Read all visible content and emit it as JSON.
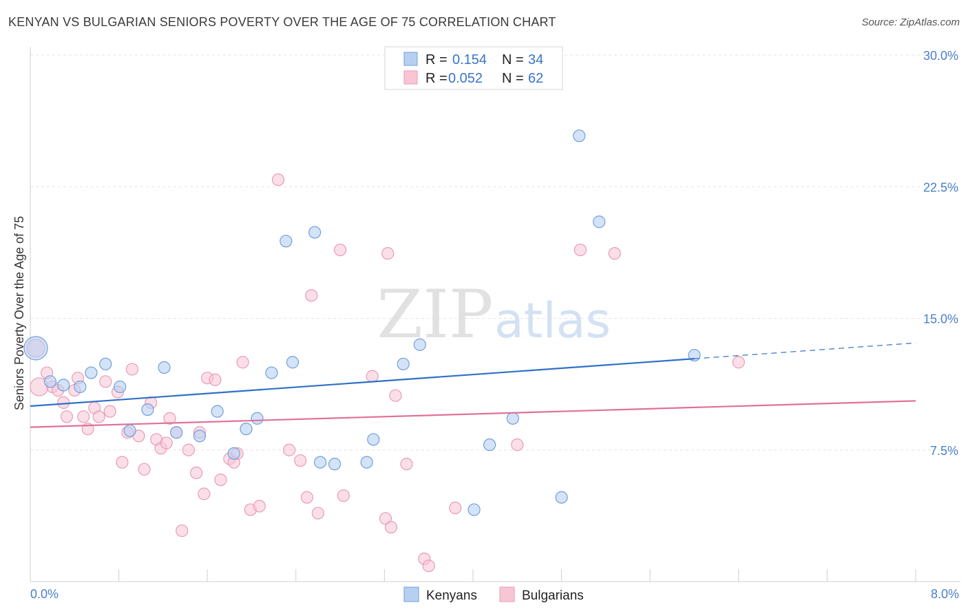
{
  "header": {
    "title": "KENYAN VS BULGARIAN SENIORS POVERTY OVER THE AGE OF 75 CORRELATION CHART",
    "source": "Source: ZipAtlas.com"
  },
  "watermark": {
    "zip": "ZIP",
    "atlas": "atlas"
  },
  "colors": {
    "kenyans_fill": "#b7d0f2",
    "kenyans_stroke": "#6f9fdc",
    "kenyans_line": "#2f6fc8",
    "bulgarians_fill": "#f8c5d5",
    "bulgarians_stroke": "#e99bb4",
    "bulgarians_line": "#e0709a",
    "tick_label": "#4a7fc9"
  },
  "legend": {
    "rows": [
      {
        "r_label": "R =",
        "r_value": "0.154",
        "n_label": "N =",
        "n_value": "34"
      },
      {
        "r_label": "R =",
        "r_value": "0.052",
        "n_label": "N =",
        "n_value": "62"
      }
    ]
  },
  "bottom_legend": [
    "Kenyans",
    "Bulgarians"
  ],
  "chart_data": {
    "type": "scatter",
    "title": "KENYAN VS BULGARIAN SENIORS POVERTY OVER THE AGE OF 75 CORRELATION CHART",
    "ylabel": "Seniors Poverty Over the Age of 75",
    "xlabel": "",
    "xlim": [
      0,
      8
    ],
    "ylim": [
      0,
      30
    ],
    "x_tick_labels": [
      "0.0%",
      "8.0%"
    ],
    "y_ticks": [
      7.5,
      15.0,
      22.5,
      30.0
    ],
    "y_tick_labels": [
      "7.5%",
      "15.0%",
      "22.5%",
      "30.0%"
    ],
    "grid": true,
    "series": [
      {
        "name": "Kenyans",
        "r": 0.154,
        "n": 34,
        "trend": {
          "x0": 0.0,
          "y0": 10.0,
          "x1": 6.0,
          "y1": 12.7,
          "dashed_to_x": 8.0,
          "dashed_to_y": 13.6
        },
        "points": [
          [
            0.05,
            13.3,
            3
          ],
          [
            0.18,
            11.4,
            1
          ],
          [
            0.3,
            11.2,
            1
          ],
          [
            0.45,
            11.1,
            1
          ],
          [
            0.55,
            11.9,
            1
          ],
          [
            0.68,
            12.4,
            1
          ],
          [
            0.81,
            11.1,
            1
          ],
          [
            0.9,
            8.6,
            1
          ],
          [
            1.06,
            9.8,
            1
          ],
          [
            1.21,
            12.2,
            1
          ],
          [
            1.32,
            8.5,
            1
          ],
          [
            1.53,
            8.3,
            1
          ],
          [
            1.69,
            9.7,
            1
          ],
          [
            1.84,
            7.3,
            1
          ],
          [
            1.95,
            8.7,
            1
          ],
          [
            2.05,
            9.3,
            1
          ],
          [
            2.18,
            11.9,
            1
          ],
          [
            2.31,
            19.4,
            1
          ],
          [
            2.37,
            12.5,
            1
          ],
          [
            2.57,
            19.9,
            1
          ],
          [
            2.62,
            6.8,
            1
          ],
          [
            2.75,
            6.7,
            1
          ],
          [
            3.04,
            6.8,
            1
          ],
          [
            3.1,
            8.1,
            1
          ],
          [
            3.37,
            12.4,
            1
          ],
          [
            3.52,
            13.5,
            1
          ],
          [
            4.01,
            4.1,
            1
          ],
          [
            4.15,
            7.8,
            1
          ],
          [
            4.36,
            9.3,
            1
          ],
          [
            4.8,
            4.8,
            1
          ],
          [
            4.96,
            25.4,
            1
          ],
          [
            5.14,
            20.5,
            1
          ],
          [
            6.0,
            12.9,
            1
          ]
        ]
      },
      {
        "name": "Bulgarians",
        "r": 0.052,
        "n": 62,
        "trend": {
          "x0": 0.0,
          "y0": 8.8,
          "x1": 8.0,
          "y1": 10.3
        },
        "points": [
          [
            0.05,
            13.3,
            2
          ],
          [
            0.08,
            11.1,
            2
          ],
          [
            0.15,
            11.9,
            1
          ],
          [
            0.2,
            11.1,
            1
          ],
          [
            0.25,
            10.9,
            1
          ],
          [
            0.3,
            10.2,
            1
          ],
          [
            0.33,
            9.4,
            1
          ],
          [
            0.4,
            10.9,
            1
          ],
          [
            0.43,
            11.6,
            1
          ],
          [
            0.48,
            9.4,
            1
          ],
          [
            0.52,
            8.7,
            1
          ],
          [
            0.58,
            9.9,
            1
          ],
          [
            0.62,
            9.4,
            1
          ],
          [
            0.68,
            11.4,
            1
          ],
          [
            0.72,
            9.7,
            1
          ],
          [
            0.79,
            10.8,
            1
          ],
          [
            0.83,
            6.8,
            1
          ],
          [
            0.88,
            8.5,
            1
          ],
          [
            0.92,
            12.1,
            1
          ],
          [
            0.98,
            8.3,
            1
          ],
          [
            1.03,
            6.4,
            1
          ],
          [
            1.09,
            10.2,
            1
          ],
          [
            1.14,
            8.1,
            1
          ],
          [
            1.18,
            7.6,
            1
          ],
          [
            1.23,
            7.9,
            1
          ],
          [
            1.26,
            9.3,
            1
          ],
          [
            1.32,
            8.5,
            1
          ],
          [
            1.37,
            2.9,
            1
          ],
          [
            1.43,
            7.5,
            1
          ],
          [
            1.5,
            6.2,
            1
          ],
          [
            1.53,
            8.5,
            1
          ],
          [
            1.57,
            5.0,
            1
          ],
          [
            1.6,
            11.6,
            1
          ],
          [
            1.67,
            11.5,
            1
          ],
          [
            1.72,
            5.8,
            1
          ],
          [
            1.8,
            7.0,
            1
          ],
          [
            1.84,
            6.8,
            1
          ],
          [
            1.87,
            7.3,
            1
          ],
          [
            1.92,
            12.5,
            1
          ],
          [
            1.99,
            4.1,
            1
          ],
          [
            2.07,
            4.3,
            1
          ],
          [
            2.24,
            22.9,
            1
          ],
          [
            2.34,
            7.5,
            1
          ],
          [
            2.44,
            6.9,
            1
          ],
          [
            2.5,
            4.8,
            1
          ],
          [
            2.54,
            16.3,
            1
          ],
          [
            2.6,
            3.9,
            1
          ],
          [
            2.8,
            18.9,
            1
          ],
          [
            2.83,
            4.9,
            1
          ],
          [
            3.09,
            11.7,
            1
          ],
          [
            3.21,
            3.6,
            1
          ],
          [
            3.26,
            3.1,
            1
          ],
          [
            3.23,
            18.7,
            1
          ],
          [
            3.3,
            10.6,
            1
          ],
          [
            3.4,
            6.7,
            1
          ],
          [
            3.56,
            1.3,
            1
          ],
          [
            3.6,
            0.9,
            1
          ],
          [
            3.84,
            4.2,
            1
          ],
          [
            4.4,
            7.8,
            1
          ],
          [
            4.97,
            18.9,
            1
          ],
          [
            5.28,
            18.7,
            1
          ],
          [
            6.4,
            12.5,
            1
          ]
        ]
      }
    ]
  }
}
